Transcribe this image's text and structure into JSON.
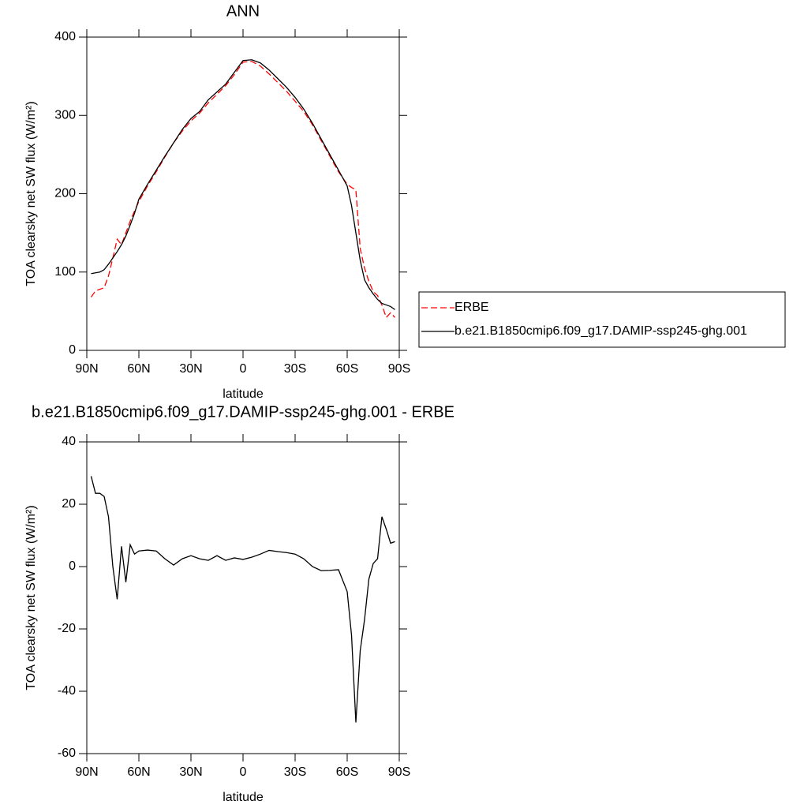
{
  "chart_data": [
    {
      "type": "line",
      "title": "ANN",
      "xlabel": "latitude",
      "ylabel": "TOA clearsky net SW flux (W/m²)",
      "x": [
        87.5,
        85,
        82.5,
        80,
        77.5,
        75,
        72.5,
        70,
        67.5,
        65,
        62.5,
        60,
        55,
        50,
        45,
        40,
        35,
        30,
        25,
        20,
        15,
        10,
        5,
        0,
        -5,
        -10,
        -15,
        -20,
        -25,
        -30,
        -35,
        -40,
        -45,
        -50,
        -55,
        -60,
        -62.5,
        -65,
        -67.5,
        -70,
        -72.5,
        -75,
        -77.5,
        -80,
        -82.5,
        -85,
        -87.5
      ],
      "series": [
        {
          "name": "ERBE",
          "color": "#ff0000",
          "line_style": "dashed",
          "values": [
            68,
            76,
            78,
            80,
            95,
            118,
            142,
            135,
            150,
            165,
            178,
            190,
            210,
            228,
            247,
            265,
            280,
            293,
            303,
            316,
            327,
            338,
            352,
            368,
            369,
            363,
            353,
            342,
            331,
            318,
            305,
            288,
            268,
            248,
            228,
            212,
            208,
            205,
            130,
            105,
            88,
            75,
            70,
            58,
            42,
            48,
            42
          ]
        },
        {
          "name": "b.e21.B1850cmip6.f09_g17.DAMIP-ssp245-ghg.001",
          "color": "#000000",
          "line_style": "solid",
          "values": [
            98,
            99,
            100,
            103,
            110,
            118,
            126,
            135,
            146,
            160,
            175,
            193,
            212,
            230,
            248,
            265,
            282,
            296,
            305,
            320,
            330,
            340,
            355,
            370,
            371,
            367,
            358,
            347,
            336,
            323,
            308,
            290,
            270,
            250,
            230,
            210,
            185,
            150,
            115,
            90,
            80,
            72,
            65,
            60,
            58,
            56,
            52
          ]
        }
      ],
      "xlim": [
        90,
        -90
      ],
      "xticks": [
        {
          "value": 90,
          "label": "90N"
        },
        {
          "value": 60,
          "label": "60N"
        },
        {
          "value": 30,
          "label": "30N"
        },
        0,
        {
          "value": -30,
          "label": "30S"
        },
        {
          "value": -60,
          "label": "60S"
        },
        {
          "value": -90,
          "label": "90S"
        }
      ],
      "ylim": [
        0,
        400
      ],
      "yticks": [
        0,
        100,
        200,
        300,
        400
      ],
      "legend": "right"
    },
    {
      "type": "line",
      "title": "b.e21.B1850cmip6.f09_g17.DAMIP-ssp245-ghg.001 - ERBE",
      "xlabel": "latitude",
      "ylabel": "TOA clearsky net SW flux (W/m²)",
      "x": [
        87.5,
        85,
        82.5,
        80,
        77.5,
        75,
        72.5,
        70,
        67.5,
        65,
        62.5,
        60,
        55,
        50,
        45,
        40,
        35,
        30,
        25,
        20,
        15,
        10,
        5,
        0,
        -5,
        -10,
        -15,
        -20,
        -25,
        -30,
        -35,
        -40,
        -45,
        -50,
        -55,
        -60,
        -62.5,
        -65,
        -67.5,
        -70,
        -72.5,
        -75,
        -77.5,
        -80,
        -82.5,
        -85,
        -87.5
      ],
      "series": [
        {
          "color": "#000000",
          "line_style": "solid",
          "values": [
            29,
            23.5,
            23.5,
            22.5,
            16,
            0,
            -10.5,
            6.5,
            -5,
            7,
            4,
            5,
            5.3,
            5,
            2.5,
            0.5,
            2.5,
            3.5,
            2.5,
            2,
            3.5,
            2,
            2.8,
            2.3,
            3,
            4,
            5.2,
            4.8,
            4.5,
            4,
            2.5,
            0,
            -1.3,
            -1.2,
            -1,
            -8,
            -22,
            -50,
            -27,
            -17,
            -4,
            1,
            2.5,
            16,
            12,
            7.5,
            8
          ]
        }
      ],
      "xlim": [
        90,
        -90
      ],
      "xticks": [
        {
          "value": 90,
          "label": "90N"
        },
        {
          "value": 60,
          "label": "60N"
        },
        {
          "value": 30,
          "label": "30N"
        },
        0,
        {
          "value": -30,
          "label": "30S"
        },
        {
          "value": -60,
          "label": "60S"
        },
        {
          "value": -90,
          "label": "90S"
        }
      ],
      "ylim": [
        -60,
        40
      ],
      "yticks": [
        -60,
        -40,
        -20,
        0,
        20,
        40
      ]
    }
  ]
}
